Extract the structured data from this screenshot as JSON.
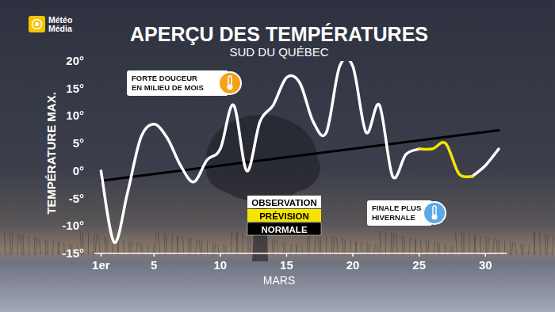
{
  "logo": {
    "lines": [
      "Météo",
      "Média"
    ]
  },
  "chart_data": {
    "type": "line",
    "title": "APERÇU DES TEMPÉRATURES",
    "subtitle": "SUD DU QUÉBEC",
    "y_label": "TEMPÉRATURE MAX.",
    "x_label": "MARS",
    "x": [
      1,
      2,
      3,
      4,
      5,
      6,
      7,
      8,
      9,
      10,
      11,
      12,
      13,
      14,
      15,
      16,
      17,
      18,
      19,
      20,
      21,
      22,
      23,
      24,
      25,
      26,
      27,
      28,
      29,
      30,
      31
    ],
    "series": [
      {
        "name": "OBSERVATION",
        "color": "#ffffff",
        "values": [
          0,
          -13,
          -4,
          6,
          8.5,
          6,
          1,
          -2,
          2,
          4,
          12,
          0,
          9,
          12,
          17,
          16,
          9,
          7,
          19,
          19,
          7,
          12,
          -1,
          3,
          4,
          null,
          null,
          null,
          -1,
          1,
          4
        ]
      },
      {
        "name": "PRÉVISION",
        "color": "#f5e400",
        "values": [
          null,
          null,
          null,
          null,
          null,
          null,
          null,
          null,
          null,
          null,
          null,
          null,
          null,
          null,
          null,
          null,
          null,
          null,
          null,
          null,
          null,
          null,
          null,
          null,
          4,
          4,
          5,
          -0.5,
          -1,
          null,
          null
        ]
      },
      {
        "name": "NORMALE",
        "color": "#000000",
        "x": [
          1,
          31
        ],
        "values": [
          -1.8,
          7.4
        ]
      }
    ],
    "xlim": [
      0.5,
      31.6
    ],
    "ylim": [
      -15,
      20
    ],
    "xticks": [
      {
        "value": 1,
        "label": "1er"
      },
      5,
      10,
      15,
      20,
      25,
      30
    ],
    "yticks": [
      {
        "value": -15,
        "label": "-15°"
      },
      {
        "value": -10,
        "label": "-10°"
      },
      {
        "value": -5,
        "label": "-5°"
      },
      {
        "value": 0,
        "label": "0°"
      },
      {
        "value": 5,
        "label": "5°"
      },
      {
        "value": 10,
        "label": "10°"
      },
      {
        "value": 15,
        "label": "15°"
      },
      {
        "value": 20,
        "label": "20°"
      }
    ],
    "grid": false,
    "legend": "center",
    "annotations": [
      {
        "text": [
          "FORTE DOUCEUR",
          "EN MILIEU DE MOIS"
        ]
      },
      {
        "text": [
          "FINALE PLUS",
          "HIVERNALE"
        ]
      }
    ]
  }
}
